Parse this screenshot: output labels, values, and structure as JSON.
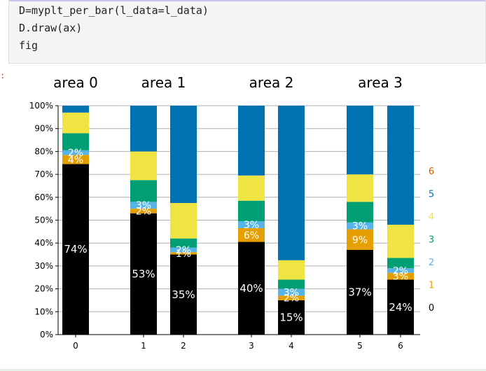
{
  "code": {
    "lines": [
      "D=myplt_per_bar(l_data=l_data)",
      "D.draw(ax)",
      "fig"
    ]
  },
  "output_marker": ":",
  "colors": {
    "0": "#000000",
    "1": "#e69f00",
    "2": "#56b4e9",
    "3": "#009e73",
    "4": "#f0e442",
    "5": "#0072b2",
    "6": "#d55e00"
  },
  "chart_data": {
    "type": "bar",
    "stacked": true,
    "percent": true,
    "titles": [
      "area 0",
      "area 1",
      "area 2",
      "area 3"
    ],
    "title_groups": [
      [
        0
      ],
      [
        1,
        2
      ],
      [
        3,
        4
      ],
      [
        5,
        6
      ]
    ],
    "categories": [
      "0",
      "1",
      "2",
      "3",
      "4",
      "5",
      "6"
    ],
    "ylim": [
      0,
      100
    ],
    "yticks": [
      "0%",
      "10%",
      "20%",
      "30%",
      "40%",
      "50%",
      "60%",
      "70%",
      "80%",
      "90%",
      "100%"
    ],
    "grid": true,
    "legend_labels": [
      "6",
      "5",
      "4",
      "3",
      "2",
      "1",
      "0"
    ],
    "legend_position": "right",
    "series": [
      {
        "key": "0",
        "values": [
          74.5,
          53,
          35,
          40.5,
          15,
          37,
          24
        ]
      },
      {
        "key": "1",
        "values": [
          4,
          2,
          1,
          6,
          2,
          9,
          3
        ]
      },
      {
        "key": "2",
        "values": [
          2,
          3,
          2,
          3,
          3,
          3,
          2
        ]
      },
      {
        "key": "3",
        "values": [
          7.5,
          9.5,
          4,
          9,
          4,
          9,
          4.5
        ]
      },
      {
        "key": "4",
        "values": [
          9,
          12.5,
          15.5,
          11,
          8.5,
          12,
          14.5
        ]
      },
      {
        "key": "5",
        "values": [
          3,
          20,
          42.5,
          30.5,
          67.5,
          30,
          52
        ]
      }
    ],
    "data_labels": [
      [
        {
          "s": 0,
          "text": "74%"
        },
        {
          "s": 1,
          "text": "4%"
        },
        {
          "s": 2,
          "text": "2%"
        }
      ],
      [
        {
          "s": 0,
          "text": "53%"
        },
        {
          "s": 1,
          "text": "2%"
        },
        {
          "s": 2,
          "text": "3%"
        }
      ],
      [
        {
          "s": 0,
          "text": "35%"
        },
        {
          "s": 1,
          "text": "1%"
        },
        {
          "s": 2,
          "text": "2%"
        }
      ],
      [
        {
          "s": 0,
          "text": "40%"
        },
        {
          "s": 1,
          "text": "6%"
        },
        {
          "s": 2,
          "text": "3%"
        }
      ],
      [
        {
          "s": 0,
          "text": "15%"
        },
        {
          "s": 1,
          "text": "2%"
        },
        {
          "s": 2,
          "text": "3%"
        }
      ],
      [
        {
          "s": 0,
          "text": "37%"
        },
        {
          "s": 1,
          "text": "9%"
        },
        {
          "s": 2,
          "text": "3%"
        }
      ],
      [
        {
          "s": 0,
          "text": "24%"
        },
        {
          "s": 1,
          "text": "3%"
        },
        {
          "s": 2,
          "text": "2%"
        }
      ]
    ]
  }
}
